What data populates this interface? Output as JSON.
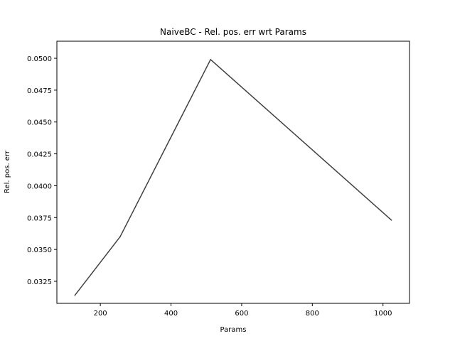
{
  "chart_data": {
    "type": "line",
    "title": "NaiveBC - Rel. pos. err wrt Params",
    "xlabel": "Params",
    "ylabel": "Rel. pos. err",
    "xlim": [
      77,
      1075
    ],
    "ylim": [
      0.03077,
      0.05134
    ],
    "xticks": [
      200,
      400,
      600,
      800,
      1000
    ],
    "xtick_labels": [
      "200",
      "400",
      "600",
      "800",
      "1000"
    ],
    "yticks": [
      0.0325,
      0.035,
      0.0375,
      0.04,
      0.0425,
      0.045,
      0.0475,
      0.05
    ],
    "ytick_labels": [
      "0.0325",
      "0.0350",
      "0.0375",
      "0.0400",
      "0.0425",
      "0.0450",
      "0.0475",
      "0.0500"
    ],
    "grid": false,
    "series": [
      {
        "color": "#404040",
        "x": [
          128,
          256,
          512,
          1024
        ],
        "y": [
          0.0314,
          0.036,
          0.0499,
          0.0373
        ]
      }
    ]
  }
}
